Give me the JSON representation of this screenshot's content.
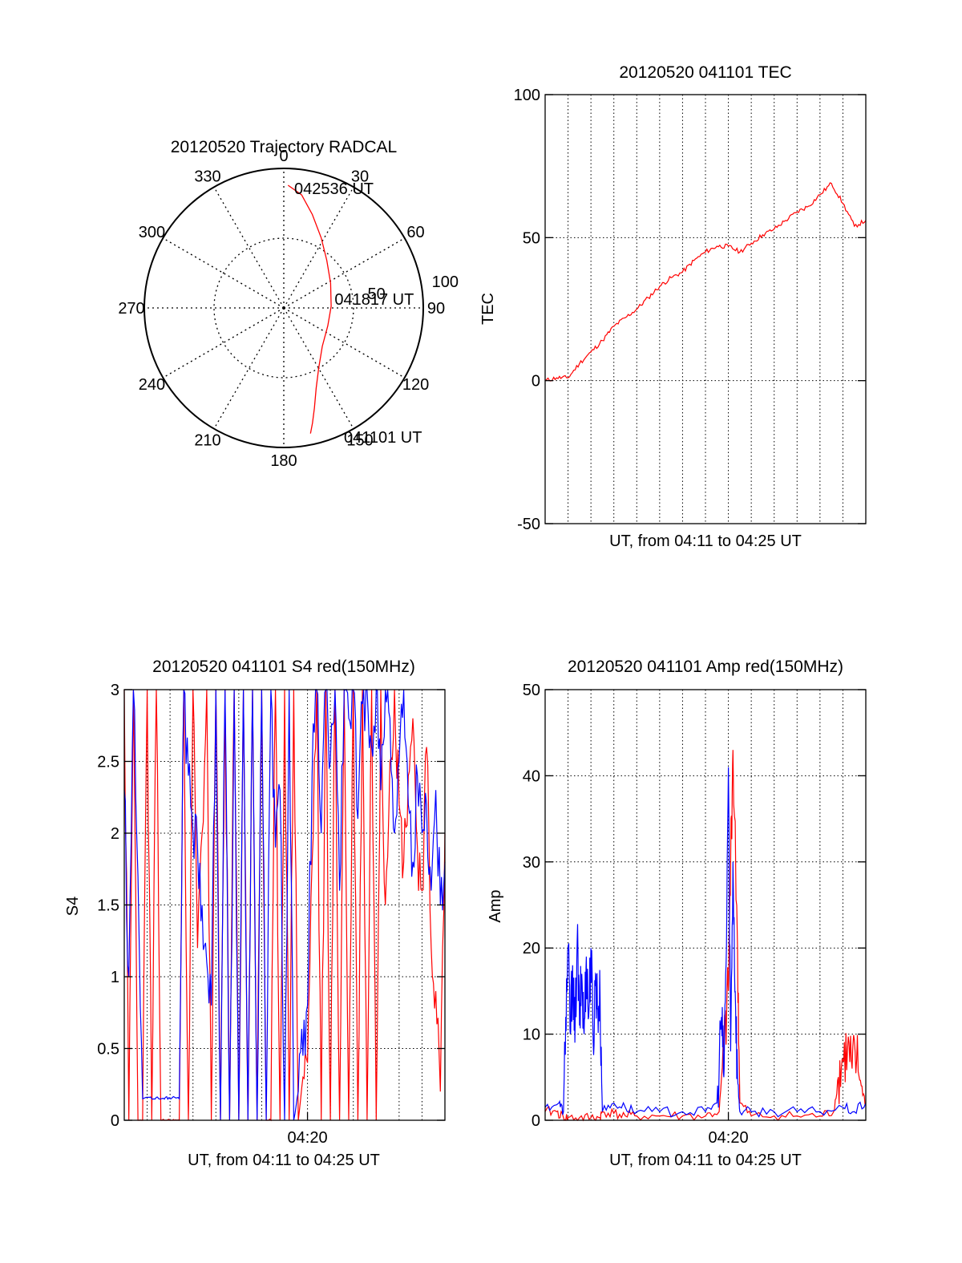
{
  "colors": {
    "red": "#ff0000",
    "blue": "#0000ff",
    "axis": "#000000",
    "grid": "#000000"
  },
  "chart_data": [
    {
      "id": "trajectory",
      "type": "polar",
      "title": "20120520 Trajectory RADCAL",
      "angle_labels": [
        "0",
        "30",
        "60",
        "90",
        "120",
        "150",
        "180",
        "210",
        "240",
        "270",
        "300",
        "330"
      ],
      "angle_values": [
        0,
        30,
        60,
        90,
        120,
        150,
        180,
        210,
        240,
        270,
        300,
        330
      ],
      "radial_labels": [
        "50",
        "100"
      ],
      "radial_values": [
        50,
        100
      ],
      "radial_max": 100,
      "grid": true,
      "series": [
        {
          "color": "#ff0000",
          "points": [
            {
              "az": 168,
              "r": 92
            },
            {
              "az": 166,
              "r": 85
            },
            {
              "az": 163,
              "r": 75
            },
            {
              "az": 158,
              "r": 62
            },
            {
              "az": 150,
              "r": 50
            },
            {
              "az": 135,
              "r": 39
            },
            {
              "az": 112,
              "r": 34
            },
            {
              "az": 88,
              "r": 34
            },
            {
              "az": 62,
              "r": 38
            },
            {
              "az": 42,
              "r": 46
            },
            {
              "az": 28,
              "r": 57
            },
            {
              "az": 17,
              "r": 70
            },
            {
              "az": 9,
              "r": 82
            },
            {
              "az": 2,
              "r": 88
            }
          ]
        }
      ],
      "annotations": [
        {
          "text": "042536 UT",
          "az": 5,
          "r": 86
        },
        {
          "text": "041817 UT",
          "az": 80,
          "r": 37
        },
        {
          "text": "041101 UT",
          "az": 155,
          "r": 102
        }
      ]
    },
    {
      "id": "tec",
      "type": "line",
      "title": "20120520 041101 TEC",
      "xlabel": "UT, from 04:11 to 04:25 UT",
      "ylabel": "TEC",
      "xlim": [
        0,
        14
      ],
      "ylim": [
        -50,
        100
      ],
      "yticks": [
        -50,
        0,
        50,
        100
      ],
      "ytick_labels": [
        "-50",
        "0",
        "50",
        "100"
      ],
      "xgrid": [
        1,
        2,
        3,
        4,
        5,
        6,
        7,
        8,
        9,
        10,
        11,
        12,
        13
      ],
      "ygrid": [
        0,
        50
      ],
      "series": [
        {
          "color": "#ff0000",
          "x": [
            0,
            0.5,
            1.0,
            1.5,
            2.0,
            2.5,
            3.0,
            3.5,
            4.0,
            4.5,
            5.0,
            5.5,
            6.0,
            6.5,
            7.0,
            7.5,
            8.0,
            8.5,
            9.0,
            9.5,
            10.0,
            10.5,
            11.0,
            11.5,
            12.0,
            12.5,
            13.0,
            13.5,
            14.0
          ],
          "y": [
            0,
            1,
            1,
            6,
            10,
            14,
            19,
            22,
            25,
            29,
            33,
            36,
            38,
            42,
            45,
            47,
            47,
            45,
            48,
            51,
            53,
            56,
            59,
            61,
            65,
            69,
            62,
            54,
            56
          ]
        }
      ]
    },
    {
      "id": "s4",
      "type": "line",
      "title": "20120520 041101 S4 red(150MHz)",
      "xlabel": "UT, from 04:11 to 04:25 UT",
      "ylabel": "S4",
      "xlim": [
        0,
        14
      ],
      "ylim": [
        0,
        3
      ],
      "yticks": [
        0,
        0.5,
        1,
        1.5,
        2,
        2.5,
        3
      ],
      "ytick_labels": [
        "0",
        "0.5",
        "1",
        "1.5",
        "2",
        "2.5",
        "3"
      ],
      "xticks": [
        8
      ],
      "xtick_labels": [
        "04:20"
      ],
      "xgrid": [
        1,
        2,
        3,
        4,
        5,
        6,
        7,
        8,
        9,
        10,
        11,
        12,
        13
      ],
      "ygrid": [
        0.5,
        1,
        1.5,
        2,
        2.5
      ],
      "series": [
        {
          "color": "#ff0000",
          "x": [
            0.0,
            0.2,
            0.4,
            0.6,
            0.8,
            1.0,
            1.2,
            1.4,
            1.6,
            1.8,
            2.0,
            2.2,
            2.4,
            2.6,
            2.8,
            3.0,
            3.2,
            3.4,
            3.6,
            3.8,
            4.0,
            4.2,
            4.4,
            4.6,
            4.8,
            5.0,
            5.2,
            5.4,
            5.6,
            5.8,
            6.0,
            6.2,
            6.4,
            6.6,
            6.8,
            7.0,
            7.2,
            7.4,
            7.6,
            7.8,
            8.0,
            8.2,
            8.4,
            8.6,
            8.8,
            9.0,
            9.2,
            9.4,
            9.6,
            9.8,
            10.0,
            10.2,
            10.4,
            10.6,
            10.8,
            11.0,
            11.2,
            11.4,
            11.6,
            11.8,
            12.0,
            12.2,
            12.4,
            12.6,
            12.8,
            13.0,
            13.2,
            13.4,
            13.6,
            13.8,
            14.0
          ],
          "y": [
            3.0,
            0.0,
            3.0,
            0.0,
            0.0,
            3.0,
            0.0,
            3.0,
            0.0,
            0.0,
            0.0,
            0.0,
            0.0,
            3.0,
            0.0,
            3.0,
            1.2,
            2.0,
            3.0,
            0.0,
            3.0,
            0.0,
            3.0,
            0.0,
            3.0,
            0.0,
            3.0,
            0.0,
            3.0,
            0.0,
            3.0,
            0.0,
            0.0,
            3.0,
            0.0,
            3.0,
            0.0,
            3.0,
            0.0,
            0.3,
            0.4,
            1.8,
            3.0,
            0.0,
            3.0,
            0.0,
            3.0,
            0.0,
            3.0,
            0.0,
            3.0,
            0.0,
            3.0,
            0.0,
            3.0,
            0.0,
            3.0,
            1.5,
            2.5,
            3.0,
            2.2,
            1.8,
            2.4,
            2.8,
            1.9,
            1.6,
            2.6,
            1.2,
            0.9,
            0.2,
            2.0
          ]
        },
        {
          "color": "#0000ff",
          "x": [
            0.0,
            0.2,
            0.4,
            0.6,
            0.8,
            1.0,
            1.2,
            1.4,
            1.6,
            1.8,
            2.0,
            2.2,
            2.4,
            2.6,
            2.8,
            3.0,
            3.2,
            3.4,
            3.6,
            3.8,
            4.0,
            4.2,
            4.4,
            4.6,
            4.8,
            5.0,
            5.2,
            5.4,
            5.6,
            5.8,
            6.0,
            6.2,
            6.4,
            6.6,
            6.8,
            7.0,
            7.2,
            7.4,
            7.6,
            7.8,
            8.0,
            8.2,
            8.4,
            8.6,
            8.8,
            9.0,
            9.2,
            9.4,
            9.6,
            9.8,
            10.0,
            10.2,
            10.4,
            10.6,
            10.8,
            11.0,
            11.2,
            11.4,
            11.6,
            11.8,
            12.0,
            12.2,
            12.4,
            12.6,
            12.8,
            13.0,
            13.2,
            13.4,
            13.6,
            13.8,
            14.0
          ],
          "y": [
            2.3,
            1.0,
            3.0,
            1.7,
            0.15,
            0.16,
            0.15,
            0.16,
            0.15,
            0.16,
            0.15,
            0.16,
            0.15,
            3.0,
            2.4,
            2.0,
            1.9,
            1.5,
            1.1,
            0.8,
            3.0,
            0.0,
            3.0,
            0.0,
            3.0,
            0.0,
            3.0,
            0.0,
            3.0,
            0.0,
            3.0,
            0.0,
            3.0,
            1.9,
            2.3,
            0.0,
            3.0,
            0.0,
            0.2,
            0.45,
            0.8,
            2.4,
            3.0,
            2.0,
            3.0,
            2.5,
            3.0,
            1.6,
            3.0,
            2.8,
            3.0,
            2.1,
            2.9,
            3.0,
            2.6,
            3.0,
            2.3,
            3.0,
            2.8,
            2.0,
            2.5,
            3.0,
            2.2,
            1.8,
            2.4,
            2.0,
            2.2,
            1.6,
            2.3,
            1.5,
            1.8
          ]
        }
      ]
    },
    {
      "id": "amp",
      "type": "line",
      "title": "20120520 041101 Amp red(150MHz)",
      "xlabel": "UT, from 04:11 to 04:25 UT",
      "ylabel": "Amp",
      "xlim": [
        0,
        14
      ],
      "ylim": [
        0,
        50
      ],
      "yticks": [
        0,
        10,
        20,
        30,
        40,
        50
      ],
      "ytick_labels": [
        "0",
        "10",
        "20",
        "30",
        "40",
        "50"
      ],
      "xticks": [
        8
      ],
      "xtick_labels": [
        "04:20"
      ],
      "xgrid": [
        1,
        2,
        3,
        4,
        5,
        6,
        7,
        8,
        9,
        10,
        11,
        12,
        13
      ],
      "ygrid": [
        10,
        20,
        30,
        40
      ],
      "series": [
        {
          "color": "#ff0000",
          "x": [
            0.0,
            0.5,
            0.8,
            1.0,
            1.5,
            2.0,
            2.4,
            2.5,
            3.0,
            3.5,
            4.0,
            5.0,
            6.0,
            7.0,
            7.6,
            7.8,
            8.0,
            8.1,
            8.2,
            8.4,
            8.5,
            9.0,
            10.0,
            11.0,
            12.0,
            12.6,
            12.8,
            13.0,
            13.2,
            13.4,
            13.6,
            13.8,
            14.0
          ],
          "y": [
            1,
            1,
            0.3,
            0.3,
            0.3,
            0.3,
            0.3,
            1,
            0.8,
            0.5,
            0.5,
            0.5,
            0.5,
            0.5,
            1,
            8,
            15,
            30,
            43,
            20,
            2,
            0.5,
            0.5,
            0.5,
            0.5,
            1,
            5,
            7,
            8,
            6,
            7,
            4,
            2
          ]
        },
        {
          "color": "#0000ff",
          "x": [
            0.0,
            0.6,
            0.8,
            0.9,
            1.0,
            1.1,
            1.2,
            1.3,
            1.4,
            1.5,
            1.6,
            1.7,
            1.8,
            1.9,
            2.0,
            2.1,
            2.2,
            2.3,
            2.4,
            2.5,
            3.0,
            3.5,
            4.0,
            5.0,
            6.0,
            7.0,
            7.5,
            7.7,
            7.8,
            7.9,
            8.0,
            8.1,
            8.2,
            8.3,
            8.4,
            8.5,
            9.0,
            10.0,
            11.0,
            12.0,
            13.0,
            13.5,
            14.0
          ],
          "y": [
            1.5,
            2,
            1,
            12,
            20,
            10,
            18,
            9,
            21,
            11,
            17,
            10,
            19,
            12,
            20,
            9,
            17,
            13,
            14,
            1,
            2,
            1.5,
            1,
            1,
            1,
            1,
            2,
            12,
            5,
            18,
            41,
            8,
            30,
            15,
            5,
            1,
            1,
            1,
            1,
            1,
            1.5,
            1,
            2
          ]
        }
      ]
    }
  ]
}
